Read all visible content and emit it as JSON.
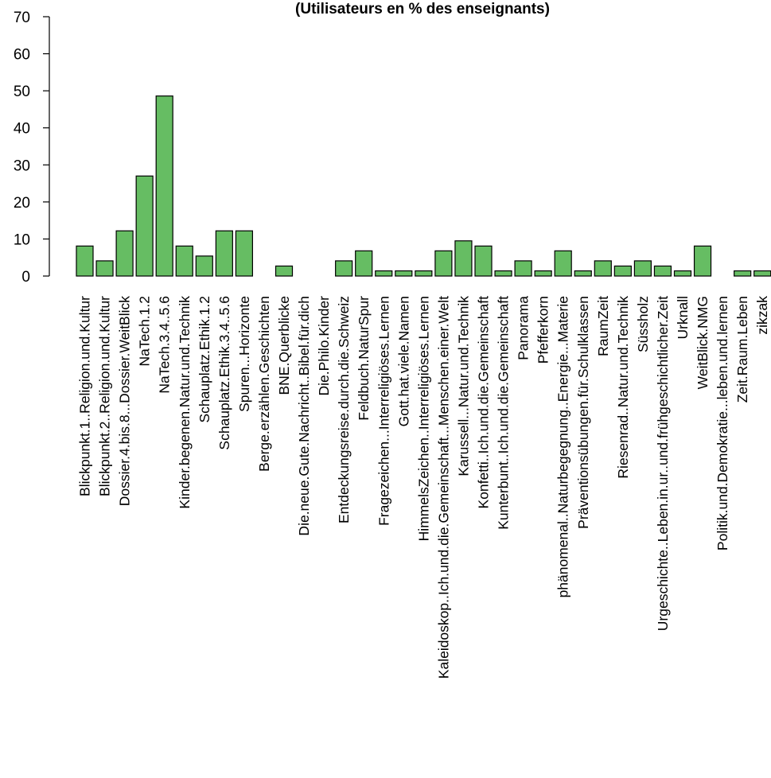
{
  "chart_data": {
    "type": "bar",
    "title": "(Utilisateurs en % des enseignants)",
    "xlabel": "",
    "ylabel": "",
    "ylim": [
      0,
      70
    ],
    "yticks": [
      0,
      10,
      20,
      30,
      40,
      50,
      60,
      70
    ],
    "bar_color": "#66bd63",
    "grid": false,
    "categories": [
      "Blickpunkt.1..Religion.und.Kultur",
      "Blickpunkt.2..Religion.und.Kultur",
      "Dossier.4.bis.8...Dossier.WeitBlick",
      "NaTech.1.2",
      "NaTech.3.4..5.6",
      "Kinder.begenen.Natur.und.Technik",
      "Schauplatz.Ethik.1.2",
      "Schauplatz.Ethik.3.4..5.6",
      "Spuren...Horizonte",
      "Berge.erzählen.Geschichten",
      "BNE.Querblicke",
      "Die.neue.Gute.Nachricht..Bibel.für.dich",
      "Die.Philo.Kinder",
      "Entdeckungsreise.durch.die.Schweiz",
      "Feldbuch.NaturSpur",
      "Fragezeichen...Interreligiöses.Lernen",
      "Gott.hat.viele.Namen",
      "HimmelsZeichen..Interreligiöses.Lernen",
      "Kaleidoskop..Ich.und.die.Gemeinschaft...Menschen.einer.Welt",
      "Karussell...Natur.und.Technik",
      "Konfetti..Ich.und.die.Gemeinschaft",
      "Kunterbunt..Ich.und.die.Gemeinschaft",
      "Panorama",
      "Pfefferkorn",
      "phänomenal..Naturbegegnung..Energie...Materie",
      "Präventionsübungen.für.Schulklassen",
      "RaumZeit",
      "Riesenrad..Natur.und.Technik",
      "Süssholz",
      "Urgeschichte..Leben.in.ur..und.frühgeschichtlicher.Zeit",
      "Urknall",
      "WeitBlick.NMG",
      "Politik.und.Demokratie...leben.und.lernen",
      "Zeit.Raum.Leben",
      "zikzak"
    ],
    "values": [
      8.1,
      4.1,
      12.2,
      27.0,
      48.6,
      8.1,
      5.4,
      12.2,
      12.2,
      0,
      2.7,
      0,
      0,
      4.1,
      6.8,
      1.4,
      1.4,
      1.4,
      6.8,
      9.5,
      8.1,
      1.4,
      4.1,
      1.4,
      6.8,
      1.4,
      4.1,
      2.7,
      4.1,
      2.7,
      1.4,
      8.1,
      0,
      1.4,
      1.4
    ]
  }
}
